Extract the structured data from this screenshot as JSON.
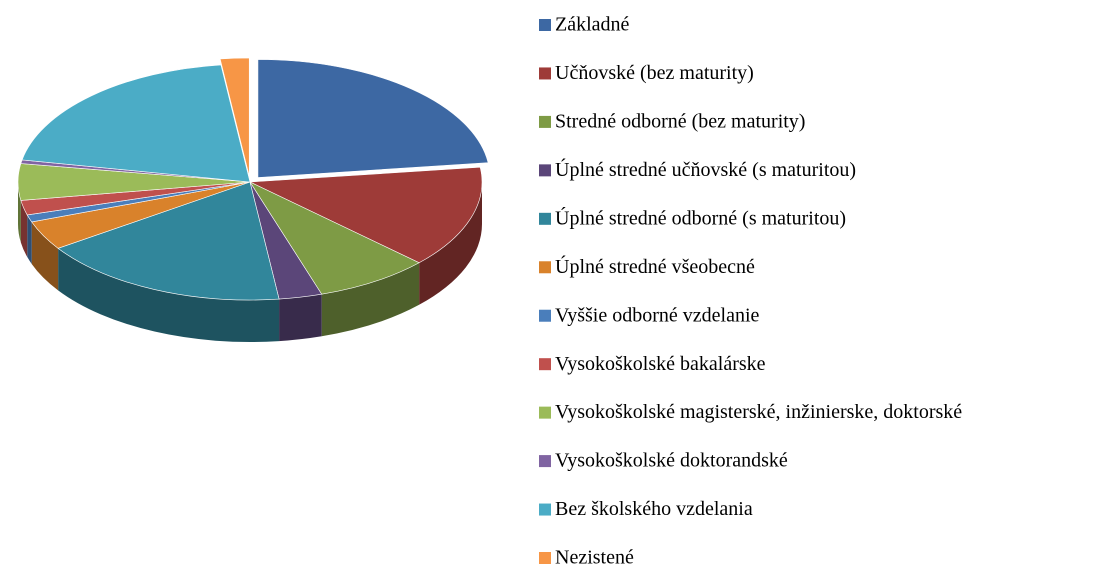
{
  "chart_data": {
    "type": "pie3d",
    "categories": [
      "Základné",
      "Učňovské (bez maturity)",
      "Stredné odborné (bez maturity)",
      "Úplné stredné učňovské (s maturitou)",
      "Úplné stredné odborné (s maturitou)",
      "Úplné stredné všeobecné",
      "Vyššie odborné vzdelanie",
      "Vysokoškolské bakalárske",
      "Vysokoškolské magisterské, inžinierske, doktorské",
      "Vysokoškolské doktorandské",
      "Bez školského vzdelania",
      "Nezistené"
    ],
    "values": [
      23,
      14,
      8,
      3,
      17.5,
      4,
      1,
      2,
      5,
      0.5,
      20,
      2
    ],
    "colors": [
      "#3d68a3",
      "#9e3b38",
      "#7e9b45",
      "#5b4679",
      "#31869b",
      "#d9822b",
      "#4a7ebb",
      "#c0504d",
      "#9bbb59",
      "#8064a2",
      "#4bacc6",
      "#f79646"
    ],
    "legend": "right"
  }
}
